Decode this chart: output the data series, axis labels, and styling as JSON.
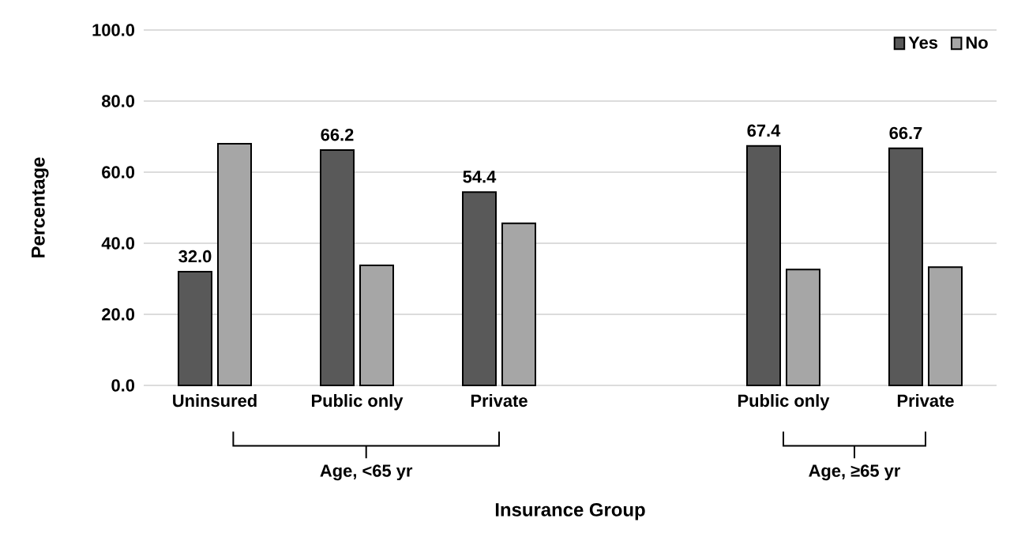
{
  "chart_data": {
    "type": "bar",
    "xlabel": "Insurance Group",
    "ylabel": "Percentage",
    "categories": [
      "Uninsured",
      "Public only",
      "Private",
      null,
      "Public only",
      "Private"
    ],
    "series": [
      {
        "name": "Yes",
        "color": "#595959",
        "values": [
          32.0,
          66.2,
          54.4,
          null,
          67.4,
          66.7
        ],
        "value_labels": [
          "32.0",
          "66.2",
          "54.4",
          null,
          "67.4",
          "66.7"
        ]
      },
      {
        "name": "No",
        "color": "#a6a6a6",
        "values": [
          68.0,
          33.8,
          45.6,
          null,
          32.6,
          33.3
        ]
      }
    ],
    "ylim": [
      0,
      100
    ],
    "yticks": [
      {
        "value": 0,
        "label": "0.0"
      },
      {
        "value": 20,
        "label": "20.0"
      },
      {
        "value": 40,
        "label": "40.0"
      },
      {
        "value": 60,
        "label": "60.0"
      },
      {
        "value": 80,
        "label": "80.0"
      },
      {
        "value": 100,
        "label": "100.0"
      }
    ],
    "grid": "y",
    "legend": "top right",
    "annotations": [
      "Age, <65 yr",
      "Age, ≥65 yr"
    ]
  }
}
